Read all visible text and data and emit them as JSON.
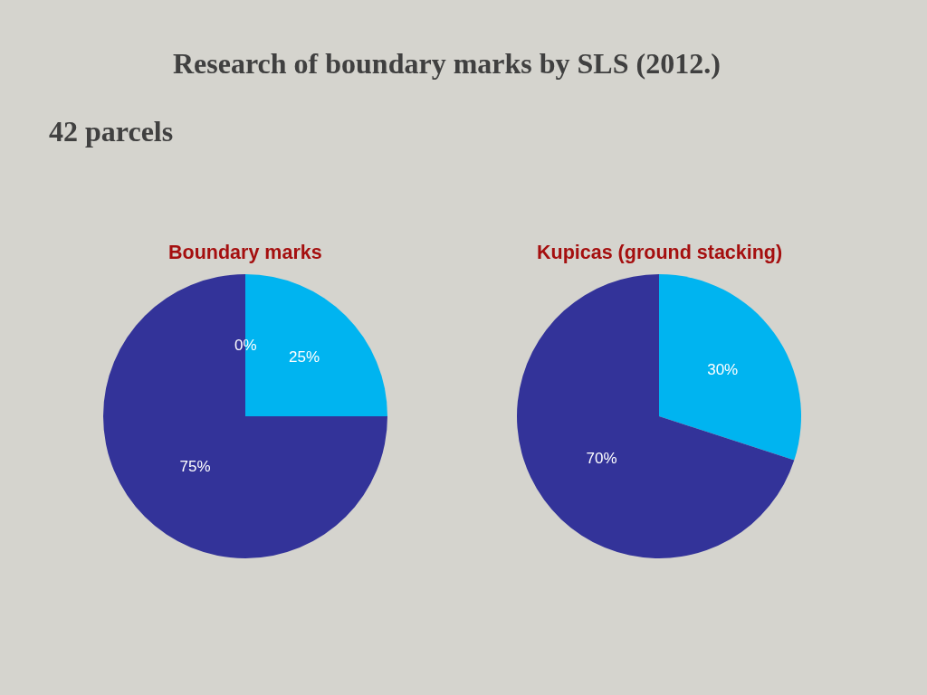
{
  "chart_data": [
    {
      "type": "other",
      "title": "Research of boundary marks by SLS (2012.)",
      "subtitle": "42 parcels"
    },
    {
      "type": "pie",
      "title": "Boundary marks",
      "categories": [
        null,
        null,
        null
      ],
      "values": [
        25,
        75,
        0
      ],
      "colors": [
        "#00b4f0",
        "#333399",
        "#333399"
      ],
      "value_labels": [
        "25%",
        "75%",
        "0%"
      ]
    },
    {
      "type": "pie",
      "title": "Kupicas (ground stacking)",
      "categories": [
        null,
        null
      ],
      "values": [
        30,
        70
      ],
      "colors": [
        "#00b4f0",
        "#333399"
      ],
      "value_labels": [
        "30%",
        "70%"
      ]
    }
  ]
}
